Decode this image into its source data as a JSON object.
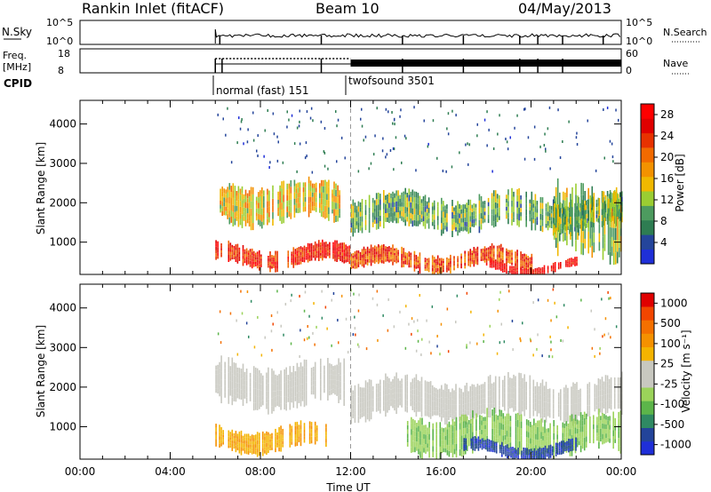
{
  "header": {
    "radar": "Rankin Inlet (fitACF)",
    "beam": "Beam 10",
    "date": "04/May/2013"
  },
  "nsky_panel": {
    "left_label": "N.Sky",
    "left_ticks": [
      "10^5",
      "10^0"
    ],
    "right_label": "N.Search",
    "right_ticks": [
      "10^5",
      "10^0"
    ]
  },
  "freq_panel": {
    "left_label_line1": "Freq.",
    "left_label_line2": "[MHz]",
    "left_ticks": [
      "18",
      "8"
    ],
    "right_label": "Nave",
    "right_ticks": [
      "60",
      "0"
    ]
  },
  "cpid": {
    "label": "CPID",
    "segments": [
      {
        "name": "normal (fast) 151",
        "start": 6.0
      },
      {
        "name": "twofsound 3501",
        "start": 12.0
      }
    ]
  },
  "x_axis": {
    "label": "Time UT",
    "tick_labels": [
      "00:00",
      "04:00",
      "08:00",
      "12:00",
      "16:00",
      "20:00",
      "00:00"
    ],
    "range_hours": [
      0,
      24
    ],
    "tick_hours": [
      0,
      4,
      8,
      12,
      16,
      20,
      24
    ]
  },
  "chart_data": [
    {
      "type": "heatmap",
      "title": "",
      "xlabel": "Time UT",
      "ylabel": "Slant Range [km]",
      "xlim": [
        0,
        24
      ],
      "ylim": [
        180,
        4600
      ],
      "yticks": [
        1000,
        2000,
        3000,
        4000
      ],
      "colorbar": {
        "label": "Power [dB]",
        "ticks": [
          4,
          8,
          12,
          16,
          20,
          24,
          28
        ],
        "colors": [
          "#1f2fd8",
          "#24459b",
          "#2e7d52",
          "#4d9b5f",
          "#9acd32",
          "#f0b800",
          "#f39200",
          "#f26a00",
          "#e83200",
          "#e00000",
          "#ff0000"
        ],
        "range": [
          0,
          30
        ]
      },
      "bands": [
        {
          "t0": 6.0,
          "t1": 12.0,
          "r0": 400,
          "r1": 900,
          "value": 25
        },
        {
          "t0": 6.2,
          "t1": 11.5,
          "r0": 1500,
          "r1": 2500,
          "value": 15
        },
        {
          "t0": 12.0,
          "t1": 24.0,
          "r0": 1300,
          "r1": 2200,
          "value": 10
        },
        {
          "t0": 12.0,
          "t1": 20.0,
          "r0": 300,
          "r1": 800,
          "value": 22
        },
        {
          "t0": 18.0,
          "t1": 22.0,
          "r0": 250,
          "r1": 500,
          "value": 28
        },
        {
          "t0": 21.0,
          "t1": 24.0,
          "r0": 600,
          "r1": 2400,
          "value": 12
        }
      ]
    },
    {
      "type": "heatmap",
      "title": "",
      "xlabel": "Time UT",
      "ylabel": "Slant Range [km]",
      "xlim": [
        0,
        24
      ],
      "ylim": [
        180,
        4600
      ],
      "yticks": [
        1000,
        2000,
        3000,
        4000
      ],
      "colorbar": {
        "label": "Velocity [m s⁻¹]",
        "ticks": [
          "1000",
          "500",
          "100",
          "25",
          "-25",
          "-100",
          "-500",
          "-1000"
        ],
        "colors": [
          "#1f2fd8",
          "#23449a",
          "#2f8a63",
          "#5cb54a",
          "#9bd35a",
          "#c8c8c0",
          "#c8c8c0",
          "#f4b400",
          "#f59100",
          "#f47000",
          "#f24600",
          "#e00000"
        ],
        "range": [
          -1000,
          1000
        ]
      },
      "bands": [
        {
          "t0": 6.0,
          "t1": 11.8,
          "r0": 1500,
          "r1": 2600,
          "value": 0
        },
        {
          "t0": 6.0,
          "t1": 11.0,
          "r0": 400,
          "r1": 1000,
          "value": 300
        },
        {
          "t0": 12.0,
          "t1": 24.0,
          "r0": 1200,
          "r1": 2200,
          "value": 0
        },
        {
          "t0": 14.5,
          "t1": 24.0,
          "r0": 300,
          "r1": 1300,
          "value": -300
        },
        {
          "t0": 17.0,
          "t1": 22.0,
          "r0": 250,
          "r1": 600,
          "value": -800
        }
      ]
    }
  ]
}
